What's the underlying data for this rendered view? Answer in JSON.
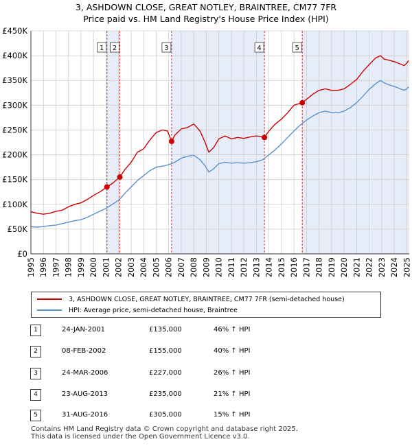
{
  "header": {
    "title": "3, ASHDOWN CLOSE, GREAT NOTLEY, BRAINTREE, CM77 7FR",
    "subtitle": "Price paid vs. HM Land Registry's House Price Index (HPI)"
  },
  "colors": {
    "red": "#cc0000",
    "blue": "#5b8fcc",
    "shade": "#e6ecf8",
    "grid": "#cccccc"
  },
  "chart_data": {
    "type": "line",
    "title": "3, ASHDOWN CLOSE, GREAT NOTLEY, BRAINTREE, CM77 7FR",
    "subtitle": "Price paid vs. HM Land Registry's House Price Index (HPI)",
    "xlim": [
      1995,
      2025.2
    ],
    "ylim": [
      0,
      450000
    ],
    "x_ticks": [
      1995,
      1996,
      1997,
      1998,
      1999,
      2000,
      2001,
      2002,
      2003,
      2004,
      2005,
      2006,
      2007,
      2008,
      2009,
      2010,
      2011,
      2012,
      2013,
      2014,
      2015,
      2016,
      2017,
      2018,
      2019,
      2020,
      2021,
      2022,
      2023,
      2024,
      2025
    ],
    "x_tick_labels": [
      "1995",
      "1996",
      "1997",
      "1998",
      "1999",
      "2000",
      "2001",
      "2002",
      "2003",
      "2004",
      "2005",
      "2006",
      "2007",
      "2008",
      "2009",
      "2010",
      "2011",
      "2012",
      "2013",
      "2014",
      "2015",
      "2016",
      "2017",
      "2018",
      "2019",
      "2020",
      "2021",
      "2022",
      "2023",
      "2024",
      "2025"
    ],
    "y_ticks": [
      0,
      50000,
      100000,
      150000,
      200000,
      250000,
      300000,
      350000,
      400000,
      450000
    ],
    "y_tick_labels": [
      "£0",
      "£50K",
      "£100K",
      "£150K",
      "£200K",
      "£250K",
      "£300K",
      "£350K",
      "£400K",
      "£450K"
    ],
    "series": [
      {
        "name": "3, ASHDOWN CLOSE, GREAT NOTLEY, BRAINTREE, CM77 7FR (semi-detached house)",
        "color": "#cc0000",
        "points": [
          [
            1995,
            85000
          ],
          [
            1995.5,
            82000
          ],
          [
            1996,
            80000
          ],
          [
            1996.5,
            82000
          ],
          [
            1997,
            86000
          ],
          [
            1997.5,
            88000
          ],
          [
            1998,
            95000
          ],
          [
            1998.5,
            100000
          ],
          [
            1999,
            103000
          ],
          [
            1999.5,
            110000
          ],
          [
            2000,
            118000
          ],
          [
            2000.5,
            125000
          ],
          [
            2001.07,
            135000
          ],
          [
            2001.5,
            142000
          ],
          [
            2002.1,
            155000
          ],
          [
            2002.5,
            170000
          ],
          [
            2003,
            185000
          ],
          [
            2003.5,
            205000
          ],
          [
            2004,
            212000
          ],
          [
            2004.5,
            230000
          ],
          [
            2005,
            245000
          ],
          [
            2005.5,
            250000
          ],
          [
            2005.9,
            248000
          ],
          [
            2006.23,
            227000
          ],
          [
            2006.5,
            240000
          ],
          [
            2007,
            252000
          ],
          [
            2007.5,
            255000
          ],
          [
            2008,
            262000
          ],
          [
            2008.5,
            248000
          ],
          [
            2008.9,
            225000
          ],
          [
            2009.2,
            205000
          ],
          [
            2009.6,
            215000
          ],
          [
            2010,
            232000
          ],
          [
            2010.5,
            238000
          ],
          [
            2011,
            232000
          ],
          [
            2011.5,
            235000
          ],
          [
            2012,
            233000
          ],
          [
            2012.5,
            236000
          ],
          [
            2013,
            238000
          ],
          [
            2013.64,
            235000
          ],
          [
            2014,
            248000
          ],
          [
            2014.5,
            262000
          ],
          [
            2015,
            272000
          ],
          [
            2015.5,
            285000
          ],
          [
            2016,
            300000
          ],
          [
            2016.66,
            305000
          ],
          [
            2017,
            312000
          ],
          [
            2017.5,
            322000
          ],
          [
            2018,
            330000
          ],
          [
            2018.5,
            333000
          ],
          [
            2019,
            330000
          ],
          [
            2019.5,
            330000
          ],
          [
            2020,
            333000
          ],
          [
            2020.5,
            342000
          ],
          [
            2021,
            352000
          ],
          [
            2021.5,
            368000
          ],
          [
            2022,
            382000
          ],
          [
            2022.5,
            395000
          ],
          [
            2022.9,
            400000
          ],
          [
            2023.2,
            393000
          ],
          [
            2023.7,
            390000
          ],
          [
            2024,
            388000
          ],
          [
            2024.5,
            383000
          ],
          [
            2024.8,
            380000
          ],
          [
            2025,
            385000
          ],
          [
            2025.15,
            390000
          ]
        ]
      },
      {
        "name": "HPI: Average price, semi-detached house, Braintree",
        "color": "#5b8fcc",
        "points": [
          [
            1995,
            55000
          ],
          [
            1995.5,
            54000
          ],
          [
            1996,
            55000
          ],
          [
            1996.5,
            57000
          ],
          [
            1997,
            58000
          ],
          [
            1997.5,
            61000
          ],
          [
            1998,
            64000
          ],
          [
            1998.5,
            67000
          ],
          [
            1999,
            69000
          ],
          [
            1999.5,
            74000
          ],
          [
            2000,
            80000
          ],
          [
            2000.5,
            86000
          ],
          [
            2001,
            92000
          ],
          [
            2001.5,
            100000
          ],
          [
            2002,
            108000
          ],
          [
            2002.5,
            122000
          ],
          [
            2003,
            135000
          ],
          [
            2003.5,
            148000
          ],
          [
            2004,
            158000
          ],
          [
            2004.5,
            168000
          ],
          [
            2005,
            175000
          ],
          [
            2005.5,
            177000
          ],
          [
            2006,
            180000
          ],
          [
            2006.5,
            185000
          ],
          [
            2007,
            193000
          ],
          [
            2007.5,
            197000
          ],
          [
            2008,
            199000
          ],
          [
            2008.5,
            190000
          ],
          [
            2008.9,
            178000
          ],
          [
            2009.2,
            165000
          ],
          [
            2009.6,
            172000
          ],
          [
            2010,
            182000
          ],
          [
            2010.5,
            185000
          ],
          [
            2011,
            183000
          ],
          [
            2011.5,
            184000
          ],
          [
            2012,
            183000
          ],
          [
            2012.5,
            184000
          ],
          [
            2013,
            186000
          ],
          [
            2013.5,
            190000
          ],
          [
            2014,
            200000
          ],
          [
            2014.5,
            210000
          ],
          [
            2015,
            222000
          ],
          [
            2015.5,
            235000
          ],
          [
            2016,
            248000
          ],
          [
            2016.5,
            260000
          ],
          [
            2017,
            270000
          ],
          [
            2017.5,
            278000
          ],
          [
            2018,
            285000
          ],
          [
            2018.5,
            288000
          ],
          [
            2019,
            285000
          ],
          [
            2019.5,
            285000
          ],
          [
            2020,
            288000
          ],
          [
            2020.5,
            295000
          ],
          [
            2021,
            305000
          ],
          [
            2021.5,
            318000
          ],
          [
            2022,
            332000
          ],
          [
            2022.5,
            343000
          ],
          [
            2022.9,
            350000
          ],
          [
            2023.2,
            345000
          ],
          [
            2023.7,
            340000
          ],
          [
            2024,
            338000
          ],
          [
            2024.5,
            333000
          ],
          [
            2024.8,
            330000
          ],
          [
            2025,
            333000
          ],
          [
            2025.15,
            337000
          ]
        ]
      }
    ],
    "sales": [
      {
        "label": "1",
        "x": 2001.07,
        "y": 135000
      },
      {
        "label": "2",
        "x": 2002.1,
        "y": 155000
      },
      {
        "label": "3",
        "x": 2006.23,
        "y": 227000
      },
      {
        "label": "4",
        "x": 2013.64,
        "y": 235000
      },
      {
        "label": "5",
        "x": 2016.66,
        "y": 305000
      }
    ],
    "shaded_ranges": [
      [
        2001.07,
        2002.1
      ],
      [
        2006.23,
        2013.64
      ],
      [
        2016.66,
        2025.2
      ]
    ],
    "legend_position": "below"
  },
  "legend": {
    "red_label": "3, ASHDOWN CLOSE, GREAT NOTLEY, BRAINTREE, CM77 7FR (semi-detached house)",
    "blue_label": "HPI: Average price, semi-detached house, Braintree"
  },
  "sales_table": [
    {
      "num": "1",
      "date": "24-JAN-2001",
      "price": "£135,000",
      "hpi": "46% ↑ HPI"
    },
    {
      "num": "2",
      "date": "08-FEB-2002",
      "price": "£155,000",
      "hpi": "40% ↑ HPI"
    },
    {
      "num": "3",
      "date": "24-MAR-2006",
      "price": "£227,000",
      "hpi": "26% ↑ HPI"
    },
    {
      "num": "4",
      "date": "23-AUG-2013",
      "price": "£235,000",
      "hpi": "21% ↑ HPI"
    },
    {
      "num": "5",
      "date": "31-AUG-2016",
      "price": "£305,000",
      "hpi": "15% ↑ HPI"
    }
  ],
  "footer": {
    "line1": "Contains HM Land Registry data © Crown copyright and database right 2025.",
    "line2": "This data is licensed under the Open Government Licence v3.0."
  }
}
